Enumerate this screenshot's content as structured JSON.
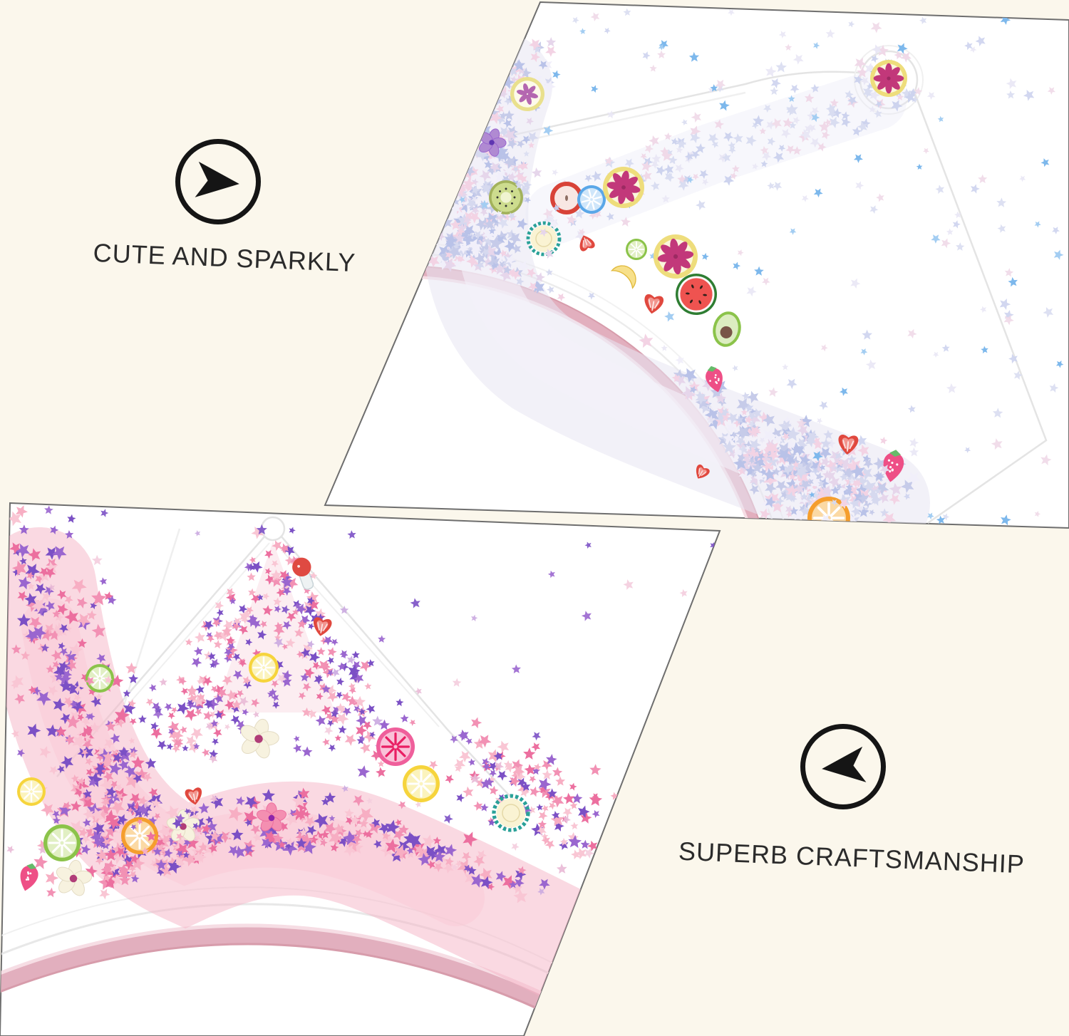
{
  "page": {
    "type": "product-feature-collage",
    "background": "#fbf7ec"
  },
  "features": [
    {
      "label": "CUTE AND SPARKLY",
      "icon": "arrow-right-circle-icon"
    },
    {
      "label": "SUPERB CRAFTSMANSHIP",
      "icon": "arrow-left-circle-icon"
    }
  ],
  "photos": [
    {
      "name": "crown-glitter-pouch-photo-top",
      "background": "#ffffff",
      "border": "#6e6e6e"
    },
    {
      "name": "crown-glitter-pouch-photo-bottom",
      "background": "#ffffff",
      "border": "#6e6e6e"
    }
  ],
  "palette": {
    "background": "#fbf7ec",
    "text": "#2b2b2b",
    "icon": "#151515",
    "photo_border": "#6e6e6e",
    "photo_background": "#ffffff",
    "band_pink": "#e2afbe",
    "band_pink_dark": "#d79cab",
    "band_pink_light": "#f6dde4",
    "seam_gray": "#e4e4e4",
    "top_glitter": [
      "#d6d9ef",
      "#c6cbe9",
      "#f1effa",
      "#e6d6eb",
      "#b9c2e8",
      "#f3d3e4"
    ],
    "top_glitter_pale": [
      "#d9ddf1",
      "#cdd3ee",
      "#e9e7f5",
      "#f0d9e8"
    ],
    "top_glitter_blue": [
      "#7db8ec",
      "#a3cdf2"
    ],
    "bottom_glitter": [
      "#f291b4",
      "#f7aec3",
      "#ec6f9f",
      "#7b50c5",
      "#9a66cf",
      "#f9c6d4"
    ],
    "bottom_glitter_purple": [
      "#7b50c5",
      "#9a66cf"
    ],
    "bottom_glitter_pale": [
      "#e9b9d6",
      "#caa8e0",
      "#f4cdde"
    ]
  }
}
